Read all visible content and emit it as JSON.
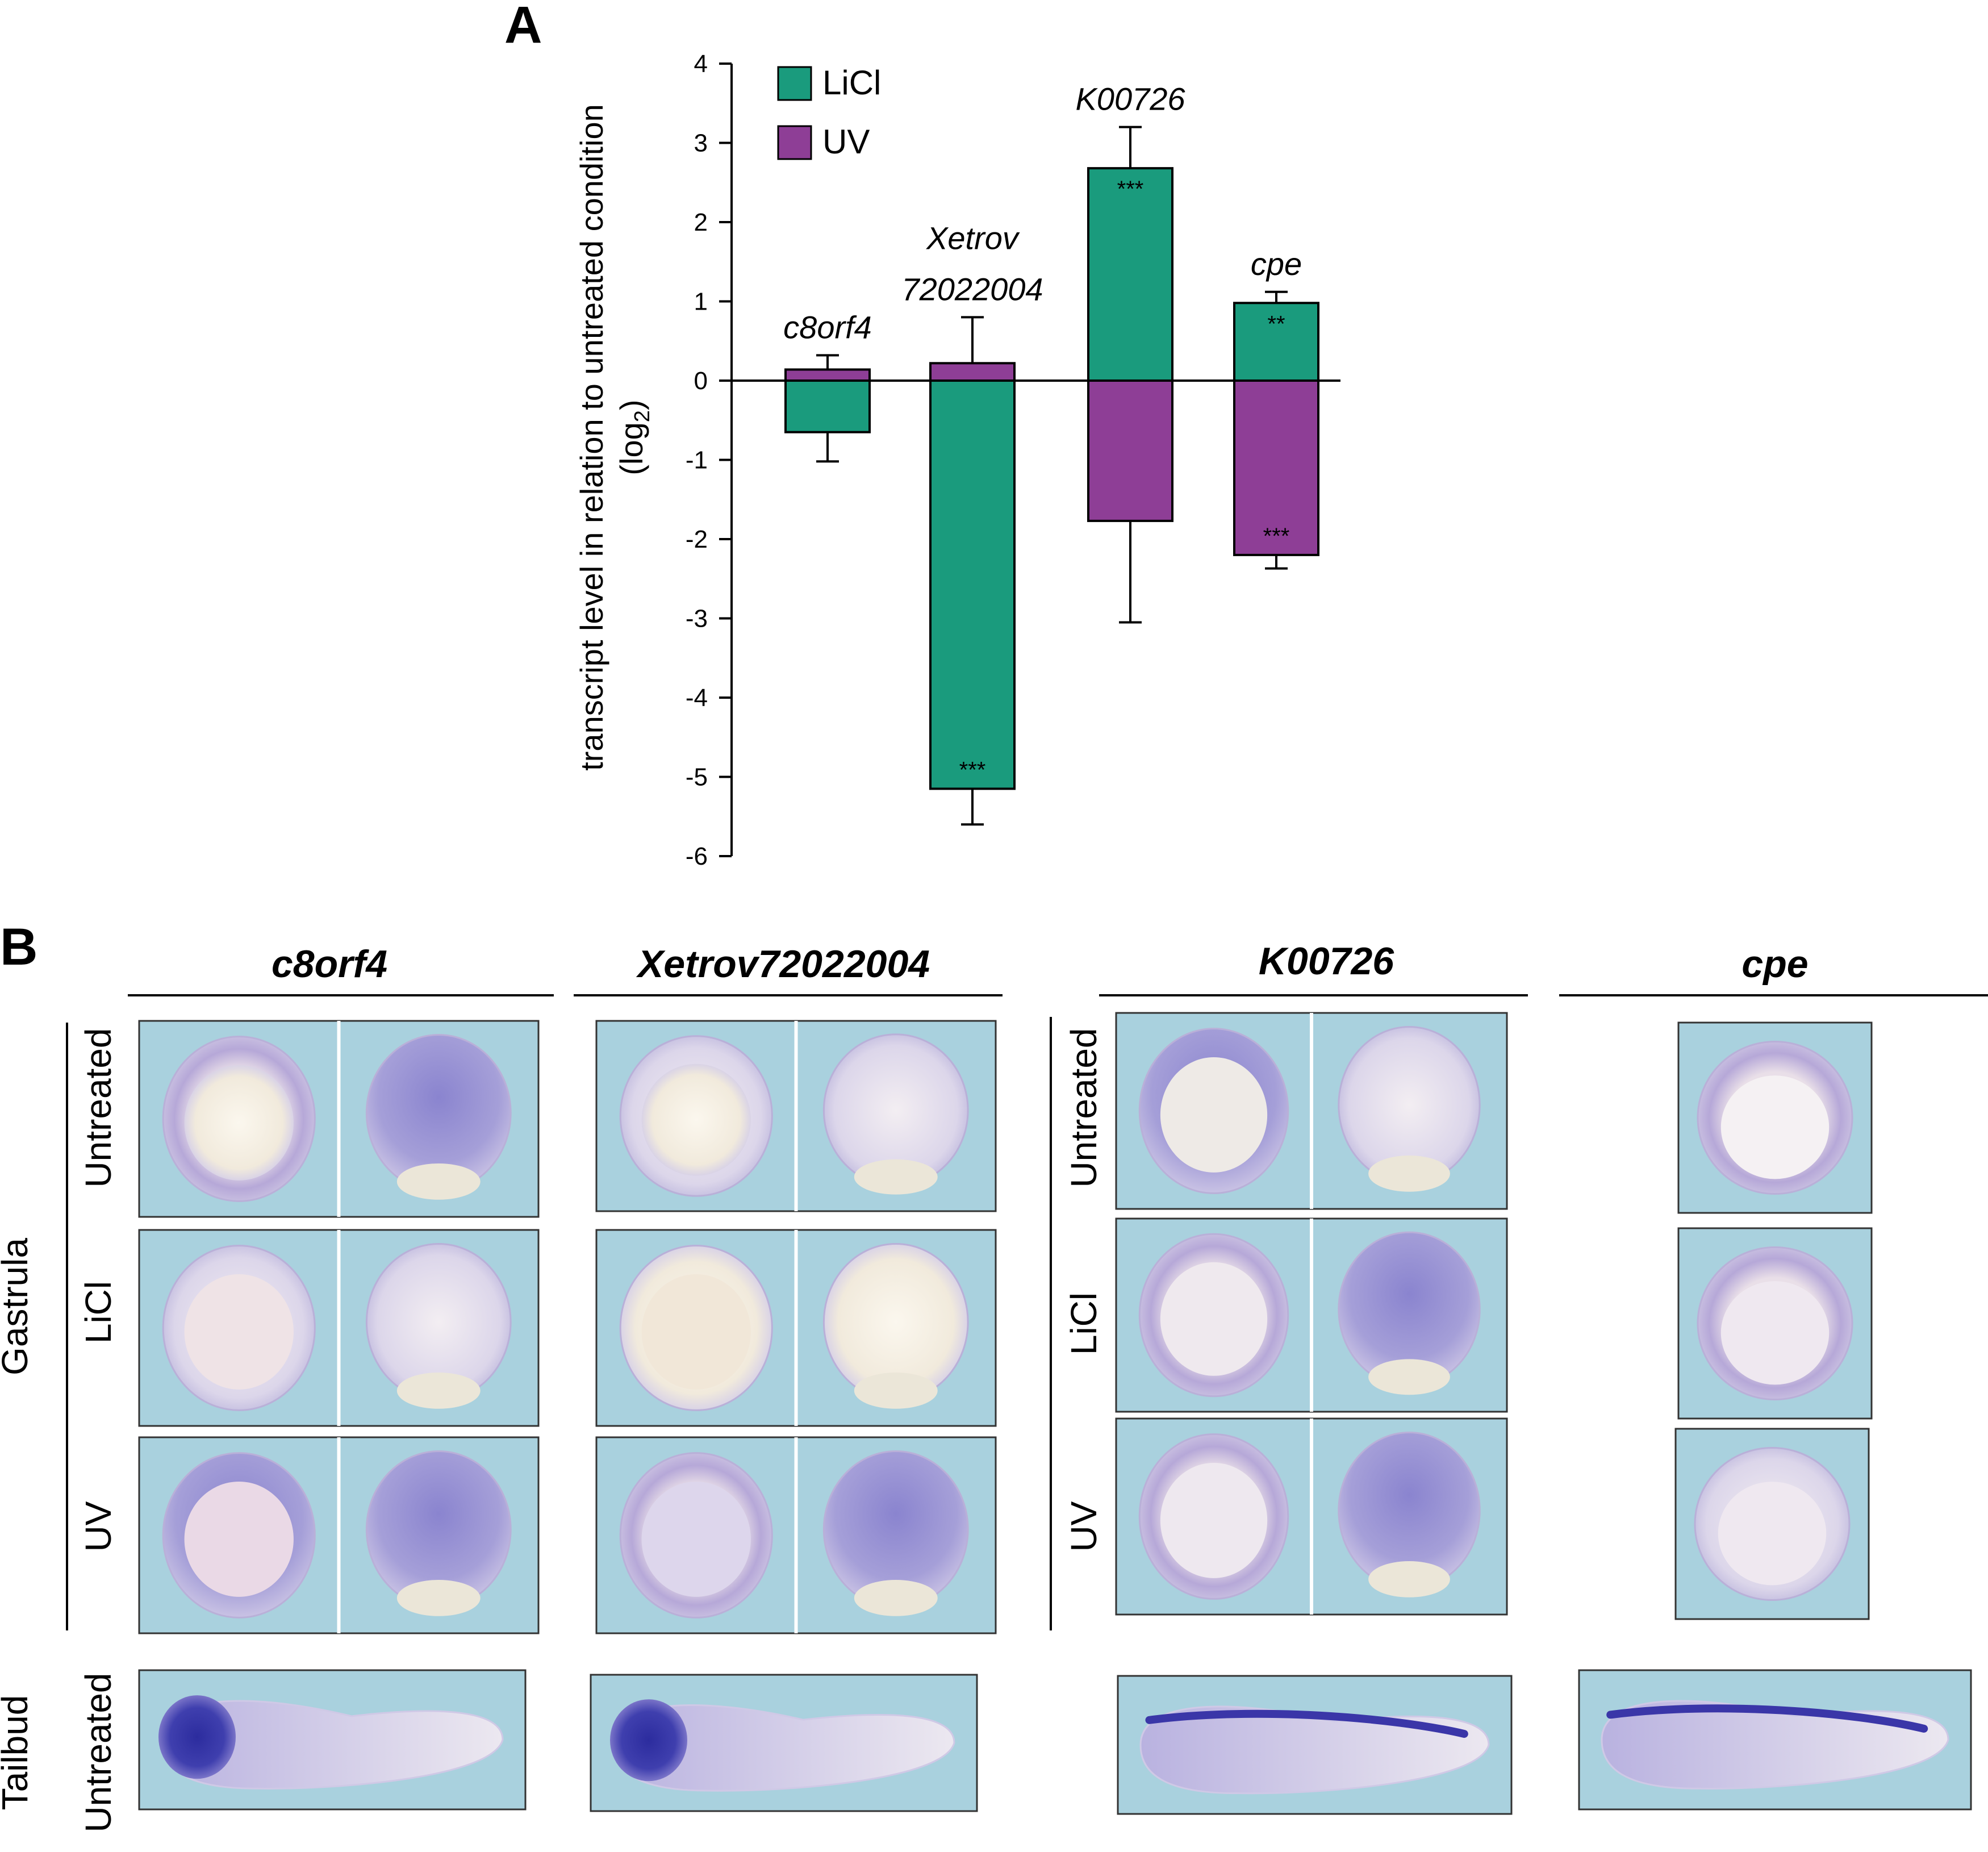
{
  "panel_a": {
    "letter": "A"
  },
  "panel_b": {
    "letter": "B"
  },
  "chart_data": {
    "type": "bar",
    "ylabel": "transcript level in relation to untreated condition",
    "ylabel_line2": "(log",
    "ylabel_sub": "2",
    "ylabel_close": ")",
    "ylim": [
      -6,
      4
    ],
    "yticks": [
      4,
      3,
      2,
      1,
      0,
      -1,
      -2,
      -3,
      -4,
      -5,
      -6
    ],
    "ytick_labels": [
      "4",
      "3",
      "2",
      "1",
      "0",
      "-1",
      "-2",
      "-3",
      "-4",
      "-5",
      "-6"
    ],
    "legend_position": "top-left",
    "categories": [
      "c8orf4",
      "Xetrov 72022004",
      "K00726",
      "cpe"
    ],
    "category_label_lines": [
      [
        "c8orf4"
      ],
      [
        "Xetrov",
        "72022004"
      ],
      [
        "K00726"
      ],
      [
        "cpe"
      ]
    ],
    "series": [
      {
        "name": "LiCl",
        "color": "#1a9b7d",
        "values": [
          -0.65,
          -5.15,
          2.68,
          0.98
        ],
        "error_tips": [
          -1.02,
          -5.6,
          3.2,
          1.12
        ],
        "significance": [
          "",
          "***",
          "***",
          "**"
        ]
      },
      {
        "name": "UV",
        "color": "#8e3e96",
        "values": [
          0.14,
          0.22,
          -1.77,
          -2.2
        ],
        "error_tips": [
          0.32,
          0.8,
          -3.05,
          -2.37
        ],
        "significance": [
          "",
          "",
          "",
          "***"
        ]
      }
    ]
  },
  "panel_b_content": {
    "genes": [
      "c8orf4",
      "Xetrov72022004",
      "K00726",
      "cpe"
    ],
    "stage_labels": {
      "gastrula": "Gastrula",
      "tailbud": "Tailbud"
    },
    "conditions": [
      "Untreated",
      "LiCl",
      "UV"
    ],
    "tailbud_condition": "Untreated",
    "colors": {
      "background_tile": "#a9d1de",
      "stain_purple": "#5b57b8",
      "embryo_cream": "#f1ecdf"
    }
  }
}
